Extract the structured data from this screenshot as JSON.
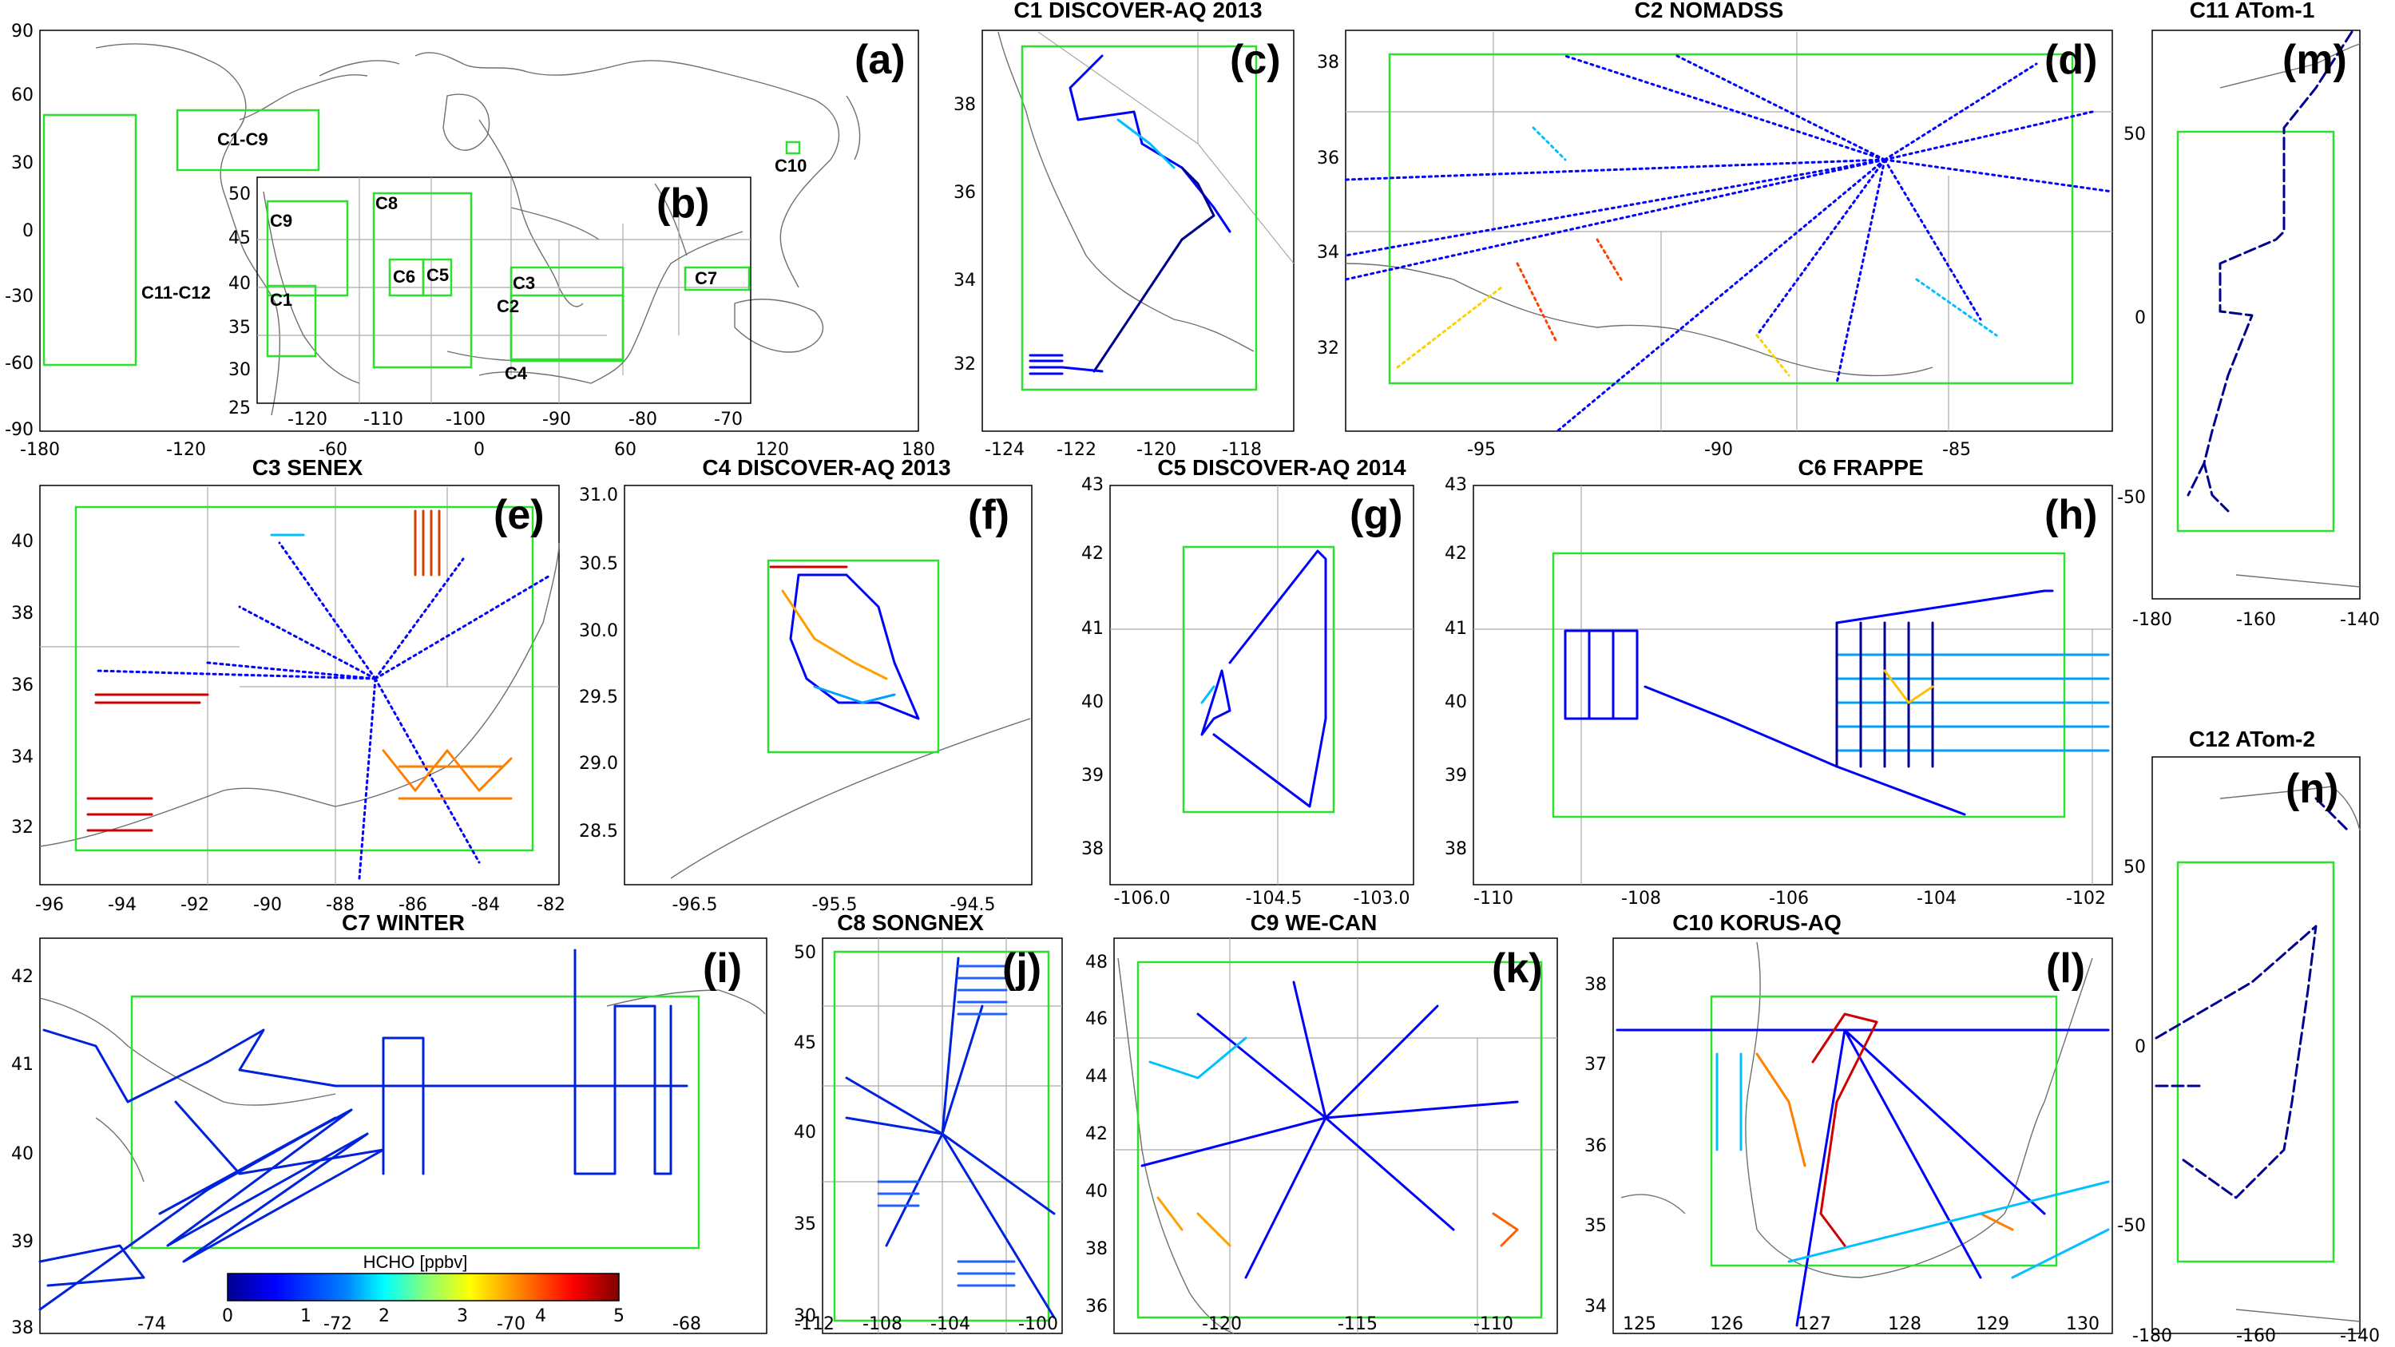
{
  "colorbar": {
    "title": "HCHO [ppbv]",
    "ticks": [
      "0",
      "1",
      "2",
      "3",
      "4",
      "5"
    ],
    "stops": [
      "#00008f",
      "#0000ff",
      "#0080ff",
      "#00ffff",
      "#80ff80",
      "#ffff00",
      "#ff8000",
      "#ff0000",
      "#800000"
    ]
  },
  "panels": [
    {
      "id": "a",
      "title": "",
      "label": "(a)",
      "xticks": [
        "-180",
        "-120",
        "-60",
        "0",
        "60",
        "120",
        "180"
      ],
      "yticks": [
        "90",
        "60",
        "30",
        "0",
        "-30",
        "-60",
        "-90"
      ],
      "regions": [
        "C1-C9",
        "C10",
        "C11-C12"
      ]
    },
    {
      "id": "b",
      "title": "",
      "label": "(b)",
      "xticks": [
        "-120",
        "-110",
        "-100",
        "-90",
        "-80",
        "-70"
      ],
      "yticks": [
        "50",
        "45",
        "40",
        "35",
        "30",
        "25"
      ],
      "regions": [
        "C1",
        "C2",
        "C3",
        "C4",
        "C5",
        "C6",
        "C7",
        "C8",
        "C9"
      ]
    },
    {
      "id": "c",
      "title": "C1 DISCOVER-AQ  2013",
      "label": "(c)",
      "xticks": [
        "-124",
        "-122",
        "-120",
        "-118"
      ],
      "yticks": [
        "38",
        "36",
        "34",
        "32"
      ]
    },
    {
      "id": "d",
      "title": "C2 NOMADSS",
      "label": "(d)",
      "xticks": [
        "-95",
        "-90",
        "-85"
      ],
      "yticks": [
        "38",
        "36",
        "34",
        "32"
      ]
    },
    {
      "id": "m",
      "title": "C11 ATom-1",
      "label": "(m)",
      "xticks": [
        "-180",
        "-160",
        "-140"
      ],
      "yticks": [
        "50",
        "0",
        "-50"
      ]
    },
    {
      "id": "e",
      "title": "C3 SENEX",
      "label": "(e)",
      "xticks": [
        "-96",
        "-94",
        "-92",
        "-90",
        "-88",
        "-86",
        "-84",
        "-82"
      ],
      "yticks": [
        "40",
        "38",
        "36",
        "34",
        "32"
      ]
    },
    {
      "id": "f",
      "title": "C4 DISCOVER-AQ  2013",
      "label": "(f)",
      "xticks": [
        "-96.5",
        "-95.5",
        "-94.5"
      ],
      "yticks": [
        "31.0",
        "30.5",
        "30.0",
        "29.5",
        "29.0",
        "28.5"
      ]
    },
    {
      "id": "g",
      "title": "C5 DISCOVER-AQ  2014",
      "label": "(g)",
      "xticks": [
        "-106.0",
        "-104.5",
        "-103.0"
      ],
      "yticks": [
        "43",
        "42",
        "41",
        "40",
        "39",
        "38"
      ]
    },
    {
      "id": "h",
      "title": "C6 FRAPPE",
      "label": "(h)",
      "xticks": [
        "-110",
        "-108",
        "-106",
        "-104",
        "-102"
      ],
      "yticks": [
        "43",
        "42",
        "41",
        "40",
        "39",
        "38"
      ]
    },
    {
      "id": "n",
      "title": "C12 ATom-2",
      "label": "(n)",
      "xticks": [
        "-180",
        "-160",
        "-140"
      ],
      "yticks": [
        "50",
        "0",
        "-50"
      ]
    },
    {
      "id": "i",
      "title": "C7 WINTER",
      "label": "(i)",
      "xticks": [
        "-74",
        "-72",
        "-70",
        "-68"
      ],
      "yticks": [
        "42",
        "41",
        "40",
        "39",
        "38"
      ]
    },
    {
      "id": "j",
      "title": "C8 SONGNEX",
      "label": "(j)",
      "xticks": [
        "-112",
        "-108",
        "-104",
        "-100"
      ],
      "yticks": [
        "50",
        "45",
        "40",
        "35",
        "30"
      ]
    },
    {
      "id": "k",
      "title": "C9 WE-CAN",
      "label": "(k)",
      "xticks": [
        "-120",
        "-115",
        "-110"
      ],
      "yticks": [
        "48",
        "46",
        "44",
        "42",
        "40",
        "38",
        "36"
      ]
    },
    {
      "id": "l",
      "title": "C10 KORUS-AQ",
      "label": "(l)",
      "xticks": [
        "125",
        "126",
        "127",
        "128",
        "129",
        "130"
      ],
      "yticks": [
        "38",
        "37",
        "36",
        "35",
        "34"
      ]
    }
  ]
}
